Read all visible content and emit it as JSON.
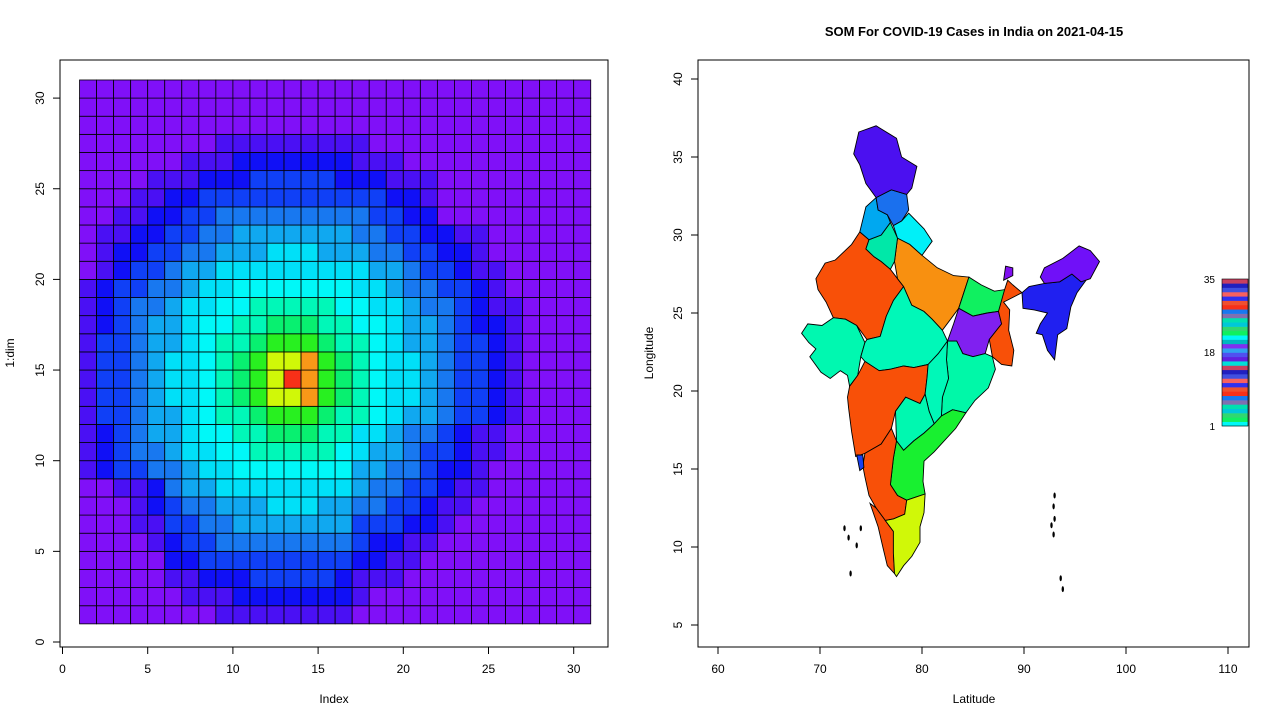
{
  "chart_data": [
    {
      "type": "heatmap",
      "title": "",
      "xlabel": "Index",
      "ylabel": "1:dim",
      "xlim": [
        0,
        32
      ],
      "ylim": [
        0,
        31
      ],
      "x_ticks": [
        "0",
        "5",
        "10",
        "15",
        "20",
        "25",
        "30"
      ],
      "y_ticks": [
        "0",
        "5",
        "10",
        "15",
        "20",
        "25",
        "30"
      ],
      "grid_size": [
        30,
        30
      ],
      "description_of_values": "rainbow-colored grid; values peak near center (x≈14, y≈15) and decrease outward",
      "peak": {
        "x": 13.5,
        "y": 14.5
      }
    },
    {
      "type": "map",
      "title": "SOM For COVID-19 Cases in India on 2021-04-15",
      "xlabel": "Latitude",
      "ylabel": "Longitude",
      "xlim": [
        58,
        112
      ],
      "ylim": [
        3,
        42
      ],
      "x_ticks": [
        "60",
        "70",
        "80",
        "90",
        "100",
        "110"
      ],
      "y_ticks": [
        "5",
        "10",
        "15",
        "20",
        "25",
        "30",
        "35",
        "40"
      ],
      "legend": {
        "position": "right",
        "labels": [
          "35",
          "18",
          "1"
        ],
        "values": [
          35,
          18,
          1
        ]
      },
      "regions": [
        {
          "name": "Jammu & Kashmir",
          "color": "#4b10f0"
        },
        {
          "name": "Himachal Pradesh",
          "color": "#1a70ee"
        },
        {
          "name": "Punjab",
          "color": "#00a8f0"
        },
        {
          "name": "Uttarakhand",
          "color": "#00f0f8"
        },
        {
          "name": "Haryana",
          "color": "#00e8a8"
        },
        {
          "name": "Rajasthan",
          "color": "#f85008"
        },
        {
          "name": "Uttar Pradesh",
          "color": "#f89010"
        },
        {
          "name": "Gujarat",
          "color": "#00f8b0"
        },
        {
          "name": "Madhya Pradesh",
          "color": "#00f8b8"
        },
        {
          "name": "Bihar",
          "color": "#10f060"
        },
        {
          "name": "Jharkhand",
          "color": "#8020f0"
        },
        {
          "name": "West Bengal",
          "color": "#f85008"
        },
        {
          "name": "Odisha",
          "color": "#00f8a8"
        },
        {
          "name": "Chhattisgarh",
          "color": "#00f8b8"
        },
        {
          "name": "Maharashtra",
          "color": "#f85008"
        },
        {
          "name": "Telangana",
          "color": "#00f8b0"
        },
        {
          "name": "Andhra Pradesh",
          "color": "#18f030"
        },
        {
          "name": "Karnataka",
          "color": "#f85008"
        },
        {
          "name": "Goa",
          "color": "#1840f0"
        },
        {
          "name": "Kerala",
          "color": "#f85008"
        },
        {
          "name": "Tamil Nadu",
          "color": "#d0f808"
        },
        {
          "name": "Northeast",
          "color": "#2020f0"
        },
        {
          "name": "Arunachal Pradesh",
          "color": "#7010f8"
        },
        {
          "name": "Sikkim",
          "color": "#8010f0"
        }
      ]
    }
  ]
}
